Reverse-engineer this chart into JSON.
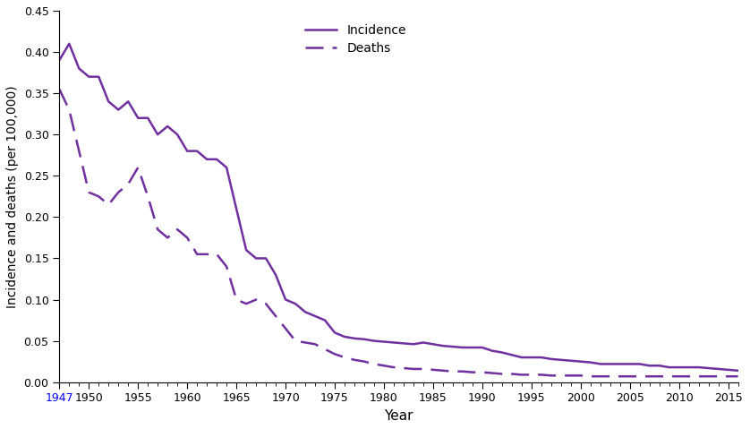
{
  "title": "",
  "xlabel": "Year",
  "ylabel": "Incidence and deaths (per 100,000)",
  "line_color": "#7030A0",
  "xlim": [
    1947,
    2016
  ],
  "ylim": [
    0,
    0.45
  ],
  "yticks": [
    0,
    0.05,
    0.1,
    0.15,
    0.2,
    0.25,
    0.3,
    0.35,
    0.4,
    0.45
  ],
  "xticks": [
    1947,
    1950,
    1955,
    1960,
    1965,
    1970,
    1975,
    1980,
    1985,
    1990,
    1995,
    2000,
    2005,
    2010,
    2015
  ],
  "incidence_years": [
    1947,
    1948,
    1949,
    1950,
    1951,
    1952,
    1953,
    1954,
    1955,
    1956,
    1957,
    1958,
    1959,
    1960,
    1961,
    1962,
    1963,
    1964,
    1965,
    1966,
    1967,
    1968,
    1969,
    1970,
    1971,
    1972,
    1973,
    1974,
    1975,
    1976,
    1977,
    1978,
    1979,
    1980,
    1981,
    1982,
    1983,
    1984,
    1985,
    1986,
    1987,
    1988,
    1989,
    1990,
    1991,
    1992,
    1993,
    1994,
    1995,
    1996,
    1997,
    1998,
    1999,
    2000,
    2001,
    2002,
    2003,
    2004,
    2005,
    2006,
    2007,
    2008,
    2009,
    2010,
    2011,
    2012,
    2013,
    2014,
    2015,
    2016
  ],
  "incidence_values": [
    0.39,
    0.41,
    0.38,
    0.37,
    0.37,
    0.34,
    0.33,
    0.34,
    0.32,
    0.32,
    0.3,
    0.31,
    0.3,
    0.28,
    0.28,
    0.27,
    0.27,
    0.26,
    0.21,
    0.16,
    0.15,
    0.15,
    0.13,
    0.1,
    0.095,
    0.085,
    0.08,
    0.075,
    0.06,
    0.055,
    0.053,
    0.052,
    0.05,
    0.049,
    0.048,
    0.047,
    0.046,
    0.048,
    0.046,
    0.044,
    0.043,
    0.042,
    0.042,
    0.042,
    0.038,
    0.036,
    0.033,
    0.03,
    0.03,
    0.03,
    0.028,
    0.027,
    0.026,
    0.025,
    0.024,
    0.022,
    0.022,
    0.022,
    0.022,
    0.022,
    0.02,
    0.02,
    0.018,
    0.018,
    0.018,
    0.018,
    0.017,
    0.016,
    0.015,
    0.014
  ],
  "deaths_years": [
    1947,
    1948,
    1949,
    1950,
    1951,
    1952,
    1953,
    1954,
    1955,
    1956,
    1957,
    1958,
    1959,
    1960,
    1961,
    1962,
    1963,
    1964,
    1965,
    1966,
    1967,
    1968,
    1969,
    1970,
    1971,
    1972,
    1973,
    1974,
    1975,
    1976,
    1977,
    1978,
    1979,
    1980,
    1981,
    1982,
    1983,
    1984,
    1985,
    1986,
    1987,
    1988,
    1989,
    1990,
    1991,
    1992,
    1993,
    1994,
    1995,
    1996,
    1997,
    1998,
    1999,
    2000,
    2001,
    2002,
    2003,
    2004,
    2005,
    2006,
    2007,
    2008,
    2009,
    2010,
    2011,
    2012,
    2013,
    2014,
    2015,
    2016
  ],
  "deaths_values": [
    0.355,
    0.33,
    0.28,
    0.23,
    0.225,
    0.215,
    0.23,
    0.24,
    0.26,
    0.225,
    0.185,
    0.175,
    0.185,
    0.175,
    0.155,
    0.155,
    0.155,
    0.14,
    0.1,
    0.095,
    0.1,
    0.095,
    0.08,
    0.065,
    0.05,
    0.048,
    0.046,
    0.04,
    0.034,
    0.03,
    0.027,
    0.025,
    0.022,
    0.02,
    0.018,
    0.017,
    0.016,
    0.016,
    0.015,
    0.014,
    0.013,
    0.013,
    0.012,
    0.012,
    0.011,
    0.01,
    0.01,
    0.009,
    0.009,
    0.009,
    0.008,
    0.008,
    0.008,
    0.008,
    0.007,
    0.007,
    0.007,
    0.007,
    0.007,
    0.007,
    0.007,
    0.007,
    0.007,
    0.007,
    0.007,
    0.007,
    0.007,
    0.007,
    0.007,
    0.007
  ],
  "legend_incidence": "Incidence",
  "legend_deaths": "Deaths",
  "background_color": "#ffffff"
}
